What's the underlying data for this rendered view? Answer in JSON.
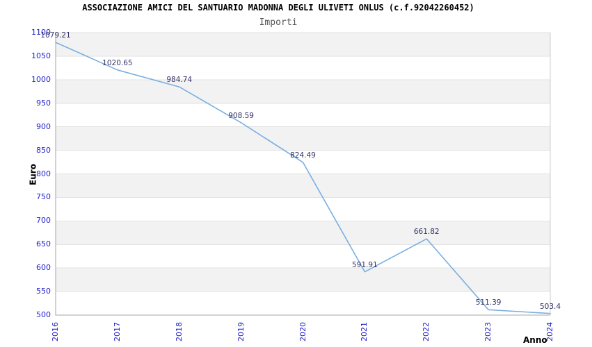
{
  "header": {
    "title": "ASSOCIAZIONE AMICI DEL SANTUARIO MADONNA DEGLI ULIVETI ONLUS (c.f.92042260452)",
    "subtitle": "Importi"
  },
  "chart_data": {
    "type": "line",
    "title": "ASSOCIAZIONE AMICI DEL SANTUARIO MADONNA DEGLI ULIVETI ONLUS (c.f.92042260452)",
    "subtitle": "Importi",
    "xlabel": "Anno",
    "ylabel": "Euro",
    "categories": [
      "2016",
      "2017",
      "2018",
      "2019",
      "2020",
      "2021",
      "2022",
      "2023",
      "2024"
    ],
    "values": [
      1079.21,
      1020.65,
      984.74,
      908.59,
      824.49,
      591.91,
      661.82,
      511.39,
      503.4
    ],
    "point_labels": [
      "1079.21",
      "1020.65",
      "984.74",
      "908.59",
      "824.49",
      "591.91",
      "661.82",
      "511.39",
      "503.4"
    ],
    "ylim": [
      500,
      1100
    ],
    "ytick_step": 50,
    "grid": true,
    "banded_background": true,
    "legend_position": "none",
    "colors": {
      "line": "#79afe1",
      "tick_label": "#2222cc",
      "point_label": "#333366",
      "band_gray": "#f2f2f2",
      "band_white": "#ffffff",
      "gridline": "#e2e2e2",
      "axis_dark": "#a6a6a6",
      "axis_light": "#cccccc",
      "title": "#000000",
      "subtitle": "#555555"
    }
  }
}
